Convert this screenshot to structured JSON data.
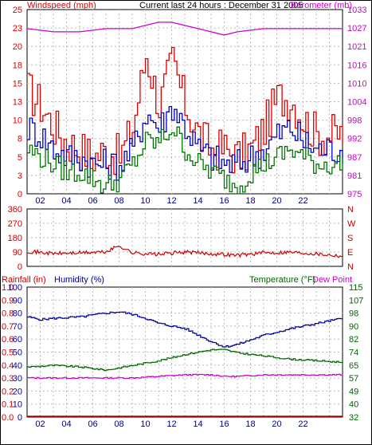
{
  "header": {
    "title": "Current last 24 hours : December 31 2005",
    "left_label": "Windspeed (mph)",
    "right_label": "Barometer (mb)"
  },
  "colors": {
    "windspeed": "#e00000",
    "wind_avg": "#0000cc",
    "wind_low": "#007700",
    "barometer": "#cc00cc",
    "wind_dir": "#cc0000",
    "humidity": "#000099",
    "temperature": "#006600",
    "dew_point": "#cc00cc",
    "rainfall": "#cc0000",
    "grid": "#bbbbbb",
    "frame": "#000000"
  },
  "chart_data": [
    {
      "id": "wind-baro",
      "type": "line",
      "title": "Current last 24 hours : December 31 2005",
      "xlabel": "",
      "x_ticks": [
        "02",
        "04",
        "06",
        "08",
        "10",
        "12",
        "14",
        "16",
        "18",
        "20",
        "22"
      ],
      "left_axis": {
        "label": "Windspeed (mph)",
        "ticks": [
          "0",
          "3",
          "5",
          "8",
          "10",
          "13",
          "15",
          "18",
          "20",
          "23",
          "25"
        ],
        "range": [
          0,
          25
        ]
      },
      "right_axis": {
        "label": "Barometer (mb)",
        "ticks": [
          "975",
          "981",
          "987",
          "992",
          "998",
          "1004",
          "1010",
          "1016",
          "1021",
          "1027",
          "1033"
        ],
        "range": [
          975,
          1033
        ]
      },
      "series": [
        {
          "name": "Windspeed (mph)",
          "axis": "left",
          "x": [
            0,
            1,
            2,
            3,
            4,
            5,
            6,
            7,
            8,
            9,
            10,
            11,
            12,
            13,
            14,
            15,
            16,
            17,
            18,
            19,
            20,
            21,
            22,
            23,
            24
          ],
          "values": [
            14,
            12,
            9,
            7,
            6,
            5,
            6,
            5,
            9,
            19,
            12,
            18,
            12,
            8,
            6,
            6,
            5,
            6,
            9,
            13,
            13,
            10,
            8,
            8,
            8
          ]
        },
        {
          "name": "Wind average",
          "axis": "left",
          "x": [
            0,
            1,
            2,
            3,
            4,
            5,
            6,
            7,
            8,
            9,
            10,
            11,
            12,
            13,
            14,
            15,
            16,
            17,
            18,
            19,
            20,
            21,
            22,
            23,
            24
          ],
          "values": [
            9,
            8,
            6,
            5,
            5,
            4,
            4,
            4,
            6,
            11,
            9,
            12,
            9,
            6,
            5,
            4,
            4,
            5,
            6,
            8,
            9,
            7,
            6,
            6,
            6
          ]
        },
        {
          "name": "Wind low",
          "axis": "left",
          "x": [
            0,
            1,
            2,
            3,
            4,
            5,
            6,
            7,
            8,
            9,
            10,
            11,
            12,
            13,
            14,
            15,
            16,
            17,
            18,
            19,
            20,
            21,
            22,
            23,
            24
          ],
          "values": [
            6,
            5,
            4,
            3,
            3,
            2,
            1,
            2,
            4,
            7,
            7,
            9,
            6,
            4,
            3,
            2,
            1,
            3,
            4,
            5,
            6,
            5,
            4,
            4,
            4
          ]
        },
        {
          "name": "Barometer (mb)",
          "axis": "right",
          "x": [
            0,
            2,
            4,
            6,
            8,
            10,
            11,
            12,
            14,
            15,
            16,
            18,
            20,
            22,
            24
          ],
          "values": [
            1027,
            1026,
            1026,
            1027,
            1027,
            1029,
            1029,
            1028,
            1026,
            1025,
            1026,
            1027,
            1027,
            1027,
            1027
          ]
        }
      ]
    },
    {
      "id": "wind-direction",
      "type": "line",
      "title": "",
      "x_ticks": [],
      "left_axis": {
        "label": "",
        "ticks": [
          "0",
          "90",
          "180",
          "270",
          "360"
        ],
        "range": [
          0,
          360
        ]
      },
      "right_axis": {
        "label": "",
        "ticks": [
          "N",
          "E",
          "S",
          "W",
          "N"
        ]
      },
      "series": [
        {
          "name": "",
          "x": [
            0,
            2,
            4,
            6,
            7,
            8,
            10,
            12,
            14,
            16,
            18,
            20,
            22,
            24
          ],
          "values": [
            95,
            80,
            85,
            90,
            130,
            85,
            75,
            90,
            80,
            70,
            85,
            90,
            80,
            65
          ]
        }
      ]
    },
    {
      "id": "rain-hum-temp",
      "type": "line",
      "title": "",
      "x_ticks": [
        "02",
        "04",
        "06",
        "08",
        "10",
        "12",
        "14",
        "16",
        "18",
        "20",
        "22"
      ],
      "labels": {
        "rainfall": "Rainfall (in)",
        "humidity": "Humidity (%)",
        "temperature": "Temperature (°F)",
        "dew_point": "Dew Point"
      },
      "rain_axis": {
        "ticks": [
          "0.0",
          "0.1",
          "0.2",
          "0.3",
          "0.4",
          "0.5",
          "0.6",
          "0.7",
          "0.8",
          "0.9",
          "1.0"
        ],
        "range": [
          0,
          1
        ]
      },
      "humidity_axis": {
        "ticks": [
          "0",
          "10",
          "20",
          "30",
          "40",
          "50",
          "60",
          "70",
          "80",
          "90",
          "100"
        ],
        "range": [
          0,
          100
        ]
      },
      "temperature_axis": {
        "ticks": [
          "32",
          "40",
          "49",
          "57",
          "65",
          "74",
          "82",
          "90",
          "98",
          "107",
          "115"
        ],
        "range": [
          32,
          115
        ]
      },
      "series": [
        {
          "name": "Humidity (%)",
          "axis": "humidity",
          "x": [
            0,
            1,
            2,
            4,
            6,
            7,
            8,
            9,
            10,
            12,
            14,
            15,
            16,
            18,
            20,
            22,
            24
          ],
          "values": [
            77,
            75,
            76,
            77,
            80,
            81,
            79,
            76,
            72,
            68,
            58,
            54,
            56,
            63,
            68,
            72,
            76
          ]
        },
        {
          "name": "Temperature (°F)",
          "axis": "temperature",
          "x": [
            0,
            2,
            4,
            6,
            8,
            10,
            12,
            14,
            15,
            16,
            18,
            20,
            22,
            24
          ],
          "values": [
            64,
            65,
            64,
            62,
            65,
            68,
            72,
            75,
            75,
            73,
            71,
            69,
            68,
            67
          ]
        },
        {
          "name": "Dew Point",
          "axis": "temperature",
          "x": [
            0,
            2,
            4,
            6,
            8,
            10,
            12,
            14,
            15,
            16,
            18,
            20,
            22,
            24
          ],
          "values": [
            57,
            57,
            57,
            57,
            57,
            58,
            59,
            59,
            58,
            58,
            59,
            59,
            59,
            59
          ]
        },
        {
          "name": "Rainfall (in)",
          "axis": "rain",
          "x": [
            0,
            24
          ],
          "values": [
            0,
            0
          ]
        }
      ]
    }
  ]
}
